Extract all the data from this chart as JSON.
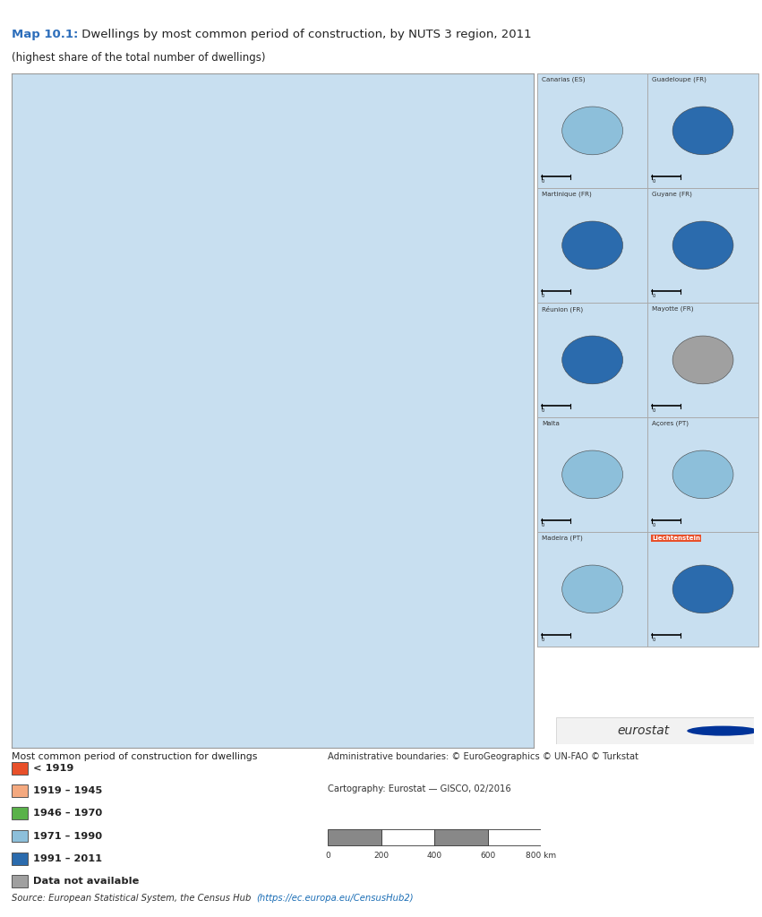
{
  "title_bold": "Map 10.1:",
  "title_normal": " Dwellings by most common period of construction, by NUTS 3 region, 2011",
  "subtitle": "(highest share of the total number of dwellings)",
  "legend_title": "Most common period of construction for dwellings",
  "legend_items": [
    {
      "label": "< 1919",
      "color": "#E8502A"
    },
    {
      "label": "1919 – 1945",
      "color": "#F4A97F"
    },
    {
      "label": "1946 – 1970",
      "color": "#5AB24A"
    },
    {
      "label": "1971 – 1990",
      "color": "#8DBFDA"
    },
    {
      "label": "1991 – 2011",
      "color": "#2B6BAD"
    },
    {
      "label": "Data not available",
      "color": "#A0A0A0"
    }
  ],
  "source_normal": "Source: European Statistical System, the Census Hub ",
  "source_link": "(https://ec.europa.eu/CensusHub2)",
  "attribution_line1": "Administrative boundaries: © EuroGeographics © UN-FAO © Turkstat",
  "attribution_line2": "Cartography: Eurostat — GISCO, 02/2016",
  "background_color": "#FFFFFF",
  "ocean_color": "#C8DFF0",
  "land_default_color": "#CCCCCC",
  "inset_boxes": [
    {
      "label": "Canarias (ES)",
      "color": "#8DBFDA",
      "label_color": "#333333",
      "label_bg": "none",
      "row": 0,
      "col": 0
    },
    {
      "label": "Guadeloupe (FR)",
      "color": "#2B6BAD",
      "label_color": "#333333",
      "label_bg": "none",
      "row": 0,
      "col": 1
    },
    {
      "label": "Martinique (FR)",
      "color": "#2B6BAD",
      "label_color": "#333333",
      "label_bg": "none",
      "row": 1,
      "col": 0
    },
    {
      "label": "Guyane (FR)",
      "color": "#2B6BAD",
      "label_color": "#333333",
      "label_bg": "none",
      "row": 1,
      "col": 1
    },
    {
      "label": "Réunion (FR)",
      "color": "#2B6BAD",
      "label_color": "#333333",
      "label_bg": "none",
      "row": 2,
      "col": 0
    },
    {
      "label": "Mayotte (FR)",
      "color": "#A0A0A0",
      "label_color": "#333333",
      "label_bg": "none",
      "row": 2,
      "col": 1
    },
    {
      "label": "Malta",
      "color": "#8DBFDA",
      "label_color": "#333333",
      "label_bg": "none",
      "row": 3,
      "col": 0
    },
    {
      "label": "Açores (PT)",
      "color": "#8DBFDA",
      "label_color": "#333333",
      "label_bg": "none",
      "row": 3,
      "col": 1
    },
    {
      "label": "Madeira (PT)",
      "color": "#8DBFDA",
      "label_color": "#333333",
      "label_bg": "none",
      "row": 4,
      "col": 0
    },
    {
      "label": "Liechtenstein",
      "color": "#2B6BAD",
      "label_color": "#FFFFFF",
      "label_bg": "#E8502A",
      "row": 4,
      "col": 1
    }
  ],
  "country_colors": {
    "Norway": "#5AB24A",
    "Sweden": "#5AB24A",
    "Finland": "#5AB24A",
    "Denmark": "#5AB24A",
    "United Kingdom": "#2B6BAD",
    "Ireland": "#2B6BAD",
    "Iceland": "#8DBFDA",
    "France": "#E8502A",
    "Belgium": "#E8502A",
    "Netherlands": "#E8502A",
    "Luxembourg": "#E8502A",
    "Germany": "#E8502A",
    "Austria": "#E8502A",
    "Switzerland": "#E8502A",
    "Spain": "#F4A97F",
    "Portugal": "#8DBFDA",
    "Italy": "#E8502A",
    "Poland": "#2B6BAD",
    "Czech Republic": "#2B6BAD",
    "Czechia": "#2B6BAD",
    "Slovakia": "#2B6BAD",
    "Hungary": "#2B6BAD",
    "Romania": "#5AB24A",
    "Bulgaria": "#5AB24A",
    "Greece": "#8DBFDA",
    "Croatia": "#5AB24A",
    "Slovenia": "#2B6BAD",
    "Serbia": "#5AB24A",
    "Bosnia and Herzegovina": "#5AB24A",
    "North Macedonia": "#5AB24A",
    "Albania": "#5AB24A",
    "Montenegro": "#5AB24A",
    "Kosovo": "#5AB24A",
    "Estonia": "#2B6BAD",
    "Latvia": "#2B6BAD",
    "Lithuania": "#2B6BAD",
    "Belarus": "#A0A0A0",
    "Ukraine": "#A0A0A0",
    "Moldova": "#A0A0A0",
    "Russia": "#A0A0A0",
    "Turkey": "#A0A0A0",
    "Cyprus": "#8DBFDA",
    "Malta": "#8DBFDA",
    "Liechtenstein": "#E8502A"
  },
  "fig_width": 8.51,
  "fig_height": 10.24,
  "dpi": 100
}
